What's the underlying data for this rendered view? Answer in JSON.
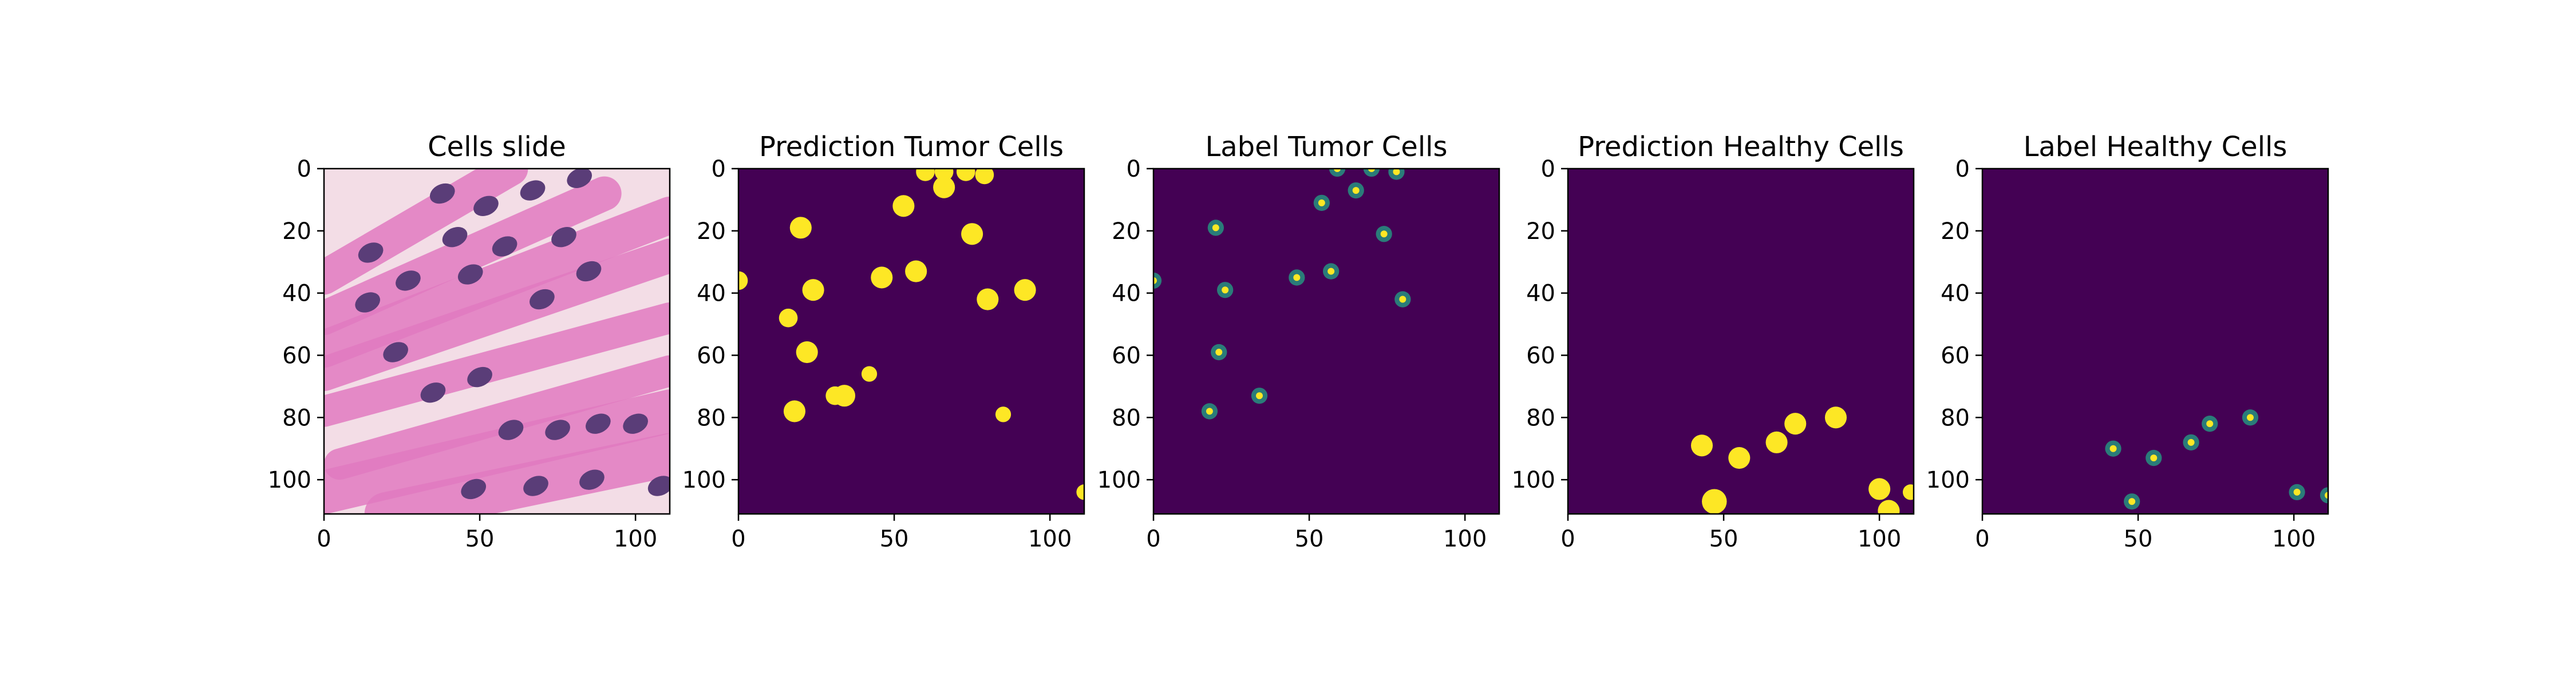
{
  "chart_data": [
    {
      "type": "heatmap",
      "title": "Cells slide",
      "image": "H&E stained histology tile (pink stroma, purple nuclei)",
      "colors": {
        "background": "#f3dde6",
        "stroma": "#e07ac0",
        "nucleus": "#5a3d78"
      },
      "xlim": [
        0,
        111
      ],
      "ylim": [
        111,
        0
      ],
      "xticks": [
        "0",
        "50",
        "100"
      ],
      "yticks": [
        "0",
        "20",
        "40",
        "60",
        "80",
        "100"
      ],
      "stroma_bands": [
        {
          "x1": 0,
          "y1": 35,
          "x2": 60,
          "y2": 0,
          "w": 11
        },
        {
          "x1": 0,
          "y1": 48,
          "x2": 90,
          "y2": 8,
          "w": 11
        },
        {
          "x1": 0,
          "y1": 58,
          "x2": 111,
          "y2": 15,
          "w": 12
        },
        {
          "x1": 0,
          "y1": 66,
          "x2": 111,
          "y2": 28,
          "w": 11
        },
        {
          "x1": 0,
          "y1": 78,
          "x2": 111,
          "y2": 48,
          "w": 10
        },
        {
          "x1": 5,
          "y1": 95,
          "x2": 111,
          "y2": 65,
          "w": 10
        },
        {
          "x1": 0,
          "y1": 104,
          "x2": 111,
          "y2": 78,
          "w": 14
        },
        {
          "x1": 20,
          "y1": 111,
          "x2": 111,
          "y2": 92,
          "w": 14
        }
      ],
      "nuclei": [
        {
          "x": 38,
          "y": 8
        },
        {
          "x": 52,
          "y": 12
        },
        {
          "x": 67,
          "y": 7
        },
        {
          "x": 82,
          "y": 3
        },
        {
          "x": 15,
          "y": 27
        },
        {
          "x": 42,
          "y": 22
        },
        {
          "x": 58,
          "y": 25
        },
        {
          "x": 77,
          "y": 22
        },
        {
          "x": 27,
          "y": 36
        },
        {
          "x": 47,
          "y": 34
        },
        {
          "x": 70,
          "y": 42
        },
        {
          "x": 85,
          "y": 33
        },
        {
          "x": 14,
          "y": 43
        },
        {
          "x": 23,
          "y": 59
        },
        {
          "x": 35,
          "y": 72
        },
        {
          "x": 50,
          "y": 67
        },
        {
          "x": 60,
          "y": 84
        },
        {
          "x": 75,
          "y": 84
        },
        {
          "x": 88,
          "y": 82
        },
        {
          "x": 100,
          "y": 82
        },
        {
          "x": 48,
          "y": 103
        },
        {
          "x": 68,
          "y": 102
        },
        {
          "x": 86,
          "y": 100
        },
        {
          "x": 108,
          "y": 102
        }
      ]
    },
    {
      "type": "heatmap",
      "title": "Prediction Tumor Cells",
      "colors": {
        "background": "#440154",
        "mask": "#fde725"
      },
      "xlim": [
        0,
        111
      ],
      "ylim": [
        111,
        0
      ],
      "xticks": [
        "0",
        "50",
        "100"
      ],
      "yticks": [
        "0",
        "20",
        "40",
        "60",
        "80",
        "100"
      ],
      "blobs": [
        {
          "x": 60,
          "y": 1,
          "r": 3
        },
        {
          "x": 66,
          "y": 1,
          "r": 3
        },
        {
          "x": 73,
          "y": 1,
          "r": 3
        },
        {
          "x": 79,
          "y": 2,
          "r": 3
        },
        {
          "x": 66,
          "y": 6,
          "r": 3.5
        },
        {
          "x": 53,
          "y": 12,
          "r": 3.5
        },
        {
          "x": 20,
          "y": 19,
          "r": 3.5
        },
        {
          "x": 75,
          "y": 21,
          "r": 3.5
        },
        {
          "x": 0,
          "y": 36,
          "r": 3
        },
        {
          "x": 57,
          "y": 33,
          "r": 3.5
        },
        {
          "x": 46,
          "y": 35,
          "r": 3.5
        },
        {
          "x": 24,
          "y": 39,
          "r": 3.5
        },
        {
          "x": 92,
          "y": 39,
          "r": 3.5
        },
        {
          "x": 80,
          "y": 42,
          "r": 3.5
        },
        {
          "x": 16,
          "y": 48,
          "r": 3
        },
        {
          "x": 22,
          "y": 59,
          "r": 3.5
        },
        {
          "x": 42,
          "y": 66,
          "r": 2.5
        },
        {
          "x": 34,
          "y": 73,
          "r": 3.5
        },
        {
          "x": 31,
          "y": 73,
          "r": 3
        },
        {
          "x": 18,
          "y": 78,
          "r": 3.5
        },
        {
          "x": 85,
          "y": 79,
          "r": 2.5
        },
        {
          "x": 111,
          "y": 104,
          "r": 2.5
        }
      ]
    },
    {
      "type": "heatmap",
      "title": "Label Tumor Cells",
      "colors": {
        "background": "#440154",
        "glow": "#21a685",
        "core": "#fde725"
      },
      "xlim": [
        0,
        111
      ],
      "ylim": [
        111,
        0
      ],
      "xticks": [
        "0",
        "50",
        "100"
      ],
      "yticks": [
        "0",
        "20",
        "40",
        "60",
        "80",
        "100"
      ],
      "points": [
        {
          "x": 59,
          "y": 0
        },
        {
          "x": 70,
          "y": 0
        },
        {
          "x": 78,
          "y": 1
        },
        {
          "x": 65,
          "y": 7
        },
        {
          "x": 54,
          "y": 11
        },
        {
          "x": 20,
          "y": 19
        },
        {
          "x": 74,
          "y": 21
        },
        {
          "x": 57,
          "y": 33
        },
        {
          "x": 46,
          "y": 35
        },
        {
          "x": 0,
          "y": 36
        },
        {
          "x": 23,
          "y": 39
        },
        {
          "x": 80,
          "y": 42
        },
        {
          "x": 21,
          "y": 59
        },
        {
          "x": 34,
          "y": 73
        },
        {
          "x": 18,
          "y": 78
        }
      ]
    },
    {
      "type": "heatmap",
      "title": "Prediction Healthy Cells",
      "colors": {
        "background": "#440154",
        "mask": "#fde725"
      },
      "xlim": [
        0,
        111
      ],
      "ylim": [
        111,
        0
      ],
      "xticks": [
        "0",
        "50",
        "100"
      ],
      "yticks": [
        "0",
        "20",
        "40",
        "60",
        "80",
        "100"
      ],
      "blobs": [
        {
          "x": 86,
          "y": 80,
          "r": 3.5
        },
        {
          "x": 73,
          "y": 82,
          "r": 3.5
        },
        {
          "x": 67,
          "y": 88,
          "r": 3.5
        },
        {
          "x": 43,
          "y": 89,
          "r": 3.5
        },
        {
          "x": 55,
          "y": 93,
          "r": 3.5
        },
        {
          "x": 100,
          "y": 103,
          "r": 3.5
        },
        {
          "x": 110,
          "y": 104,
          "r": 2.5
        },
        {
          "x": 47,
          "y": 107,
          "r": 4
        },
        {
          "x": 103,
          "y": 110,
          "r": 3.5
        }
      ]
    },
    {
      "type": "heatmap",
      "title": "Label Healthy Cells",
      "colors": {
        "background": "#440154",
        "glow": "#21a685",
        "core": "#fde725"
      },
      "xlim": [
        0,
        111
      ],
      "ylim": [
        111,
        0
      ],
      "xticks": [
        "0",
        "50",
        "100"
      ],
      "yticks": [
        "0",
        "20",
        "40",
        "60",
        "80",
        "100"
      ],
      "points": [
        {
          "x": 86,
          "y": 80
        },
        {
          "x": 73,
          "y": 82
        },
        {
          "x": 67,
          "y": 88
        },
        {
          "x": 42,
          "y": 90
        },
        {
          "x": 55,
          "y": 93
        },
        {
          "x": 101,
          "y": 104
        },
        {
          "x": 111,
          "y": 105
        },
        {
          "x": 48,
          "y": 107
        }
      ]
    }
  ]
}
